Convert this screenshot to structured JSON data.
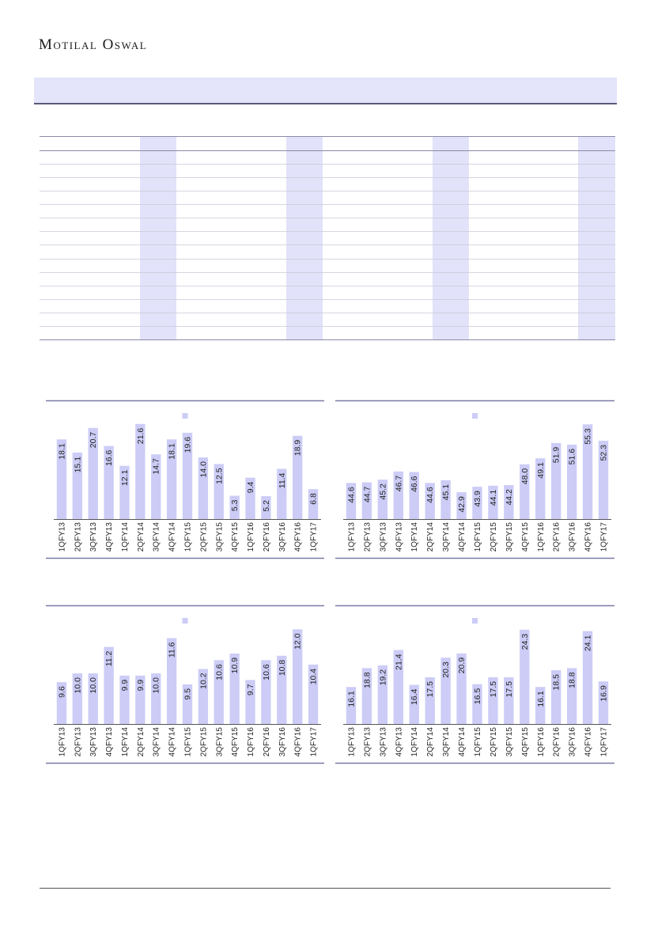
{
  "header": {
    "brand": "Motilal Oswal"
  },
  "colors": {
    "bar": "#ccccf7",
    "band": "#e2e2fa",
    "rule": "#7a7aa8",
    "text": "#222222"
  },
  "chart_data": [
    {
      "type": "bar",
      "title": "",
      "xlabel": "",
      "ylabel": "",
      "legend": "top-center",
      "categories": [
        "1QFY13",
        "2QFY13",
        "3QFY13",
        "4QFY13",
        "1QFY14",
        "2QFY14",
        "3QFY14",
        "4QFY14",
        "1QFY15",
        "2QFY15",
        "3QFY15",
        "4QFY15",
        "1QFY16",
        "2QFY16",
        "3QFY16",
        "4QFY16",
        "1QFY17"
      ],
      "series": [
        {
          "values": [
            18.1,
            15.1,
            20.7,
            16.6,
            12.1,
            21.6,
            14.7,
            18.1,
            19.6,
            14.0,
            12.5,
            5.3,
            9.4,
            5.2,
            11.4,
            18.9,
            6.8
          ]
        }
      ],
      "ylim": [
        0,
        23
      ]
    },
    {
      "type": "bar",
      "title": "",
      "xlabel": "",
      "ylabel": "",
      "legend": "top-center",
      "categories": [
        "1QFY13",
        "2QFY13",
        "3QFY13",
        "4QFY13",
        "1QFY14",
        "2QFY14",
        "3QFY14",
        "4QFY14",
        "1QFY15",
        "2QFY15",
        "3QFY15",
        "4QFY15",
        "1QFY16",
        "2QFY16",
        "3QFY16",
        "4QFY16",
        "1QFY17"
      ],
      "series": [
        {
          "values": [
            44.6,
            44.7,
            45.2,
            46.7,
            46.6,
            44.6,
            45.1,
            42.9,
            43.9,
            44.1,
            44.2,
            48.0,
            49.1,
            51.9,
            51.6,
            55.3,
            52.3
          ]
        }
      ],
      "ylim": [
        38,
        56.5
      ]
    },
    {
      "type": "bar",
      "title": "",
      "xlabel": "",
      "ylabel": "",
      "legend": "top-center",
      "categories": [
        "1QFY13",
        "2QFY13",
        "3QFY13",
        "4QFY13",
        "1QFY14",
        "2QFY14",
        "3QFY14",
        "4QFY14",
        "1QFY15",
        "2QFY15",
        "3QFY15",
        "4QFY15",
        "1QFY16",
        "2QFY16",
        "3QFY16",
        "4QFY16",
        "1QFY17"
      ],
      "series": [
        {
          "values": [
            9.6,
            10.0,
            10.0,
            11.2,
            9.9,
            9.9,
            10.0,
            11.6,
            9.5,
            10.2,
            10.6,
            10.9,
            9.7,
            10.6,
            10.8,
            12.0,
            10.4
          ]
        }
      ],
      "ylim": [
        7.7,
        12.3
      ]
    },
    {
      "type": "bar",
      "title": "",
      "xlabel": "",
      "ylabel": "",
      "legend": "top-center",
      "categories": [
        "1QFY13",
        "2QFY13",
        "3QFY13",
        "4QFY13",
        "1QFY14",
        "2QFY14",
        "3QFY14",
        "4QFY14",
        "1QFY15",
        "2QFY15",
        "3QFY15",
        "4QFY15",
        "1QFY16",
        "2QFY16",
        "3QFY16",
        "4QFY16",
        "1QFY17"
      ],
      "series": [
        {
          "values": [
            16.1,
            18.8,
            19.2,
            21.4,
            16.4,
            17.5,
            20.3,
            20.9,
            16.5,
            17.5,
            17.5,
            24.3,
            16.1,
            18.5,
            18.8,
            24.1,
            16.9
          ]
        }
      ],
      "ylim": [
        10.8,
        25.3
      ]
    }
  ]
}
